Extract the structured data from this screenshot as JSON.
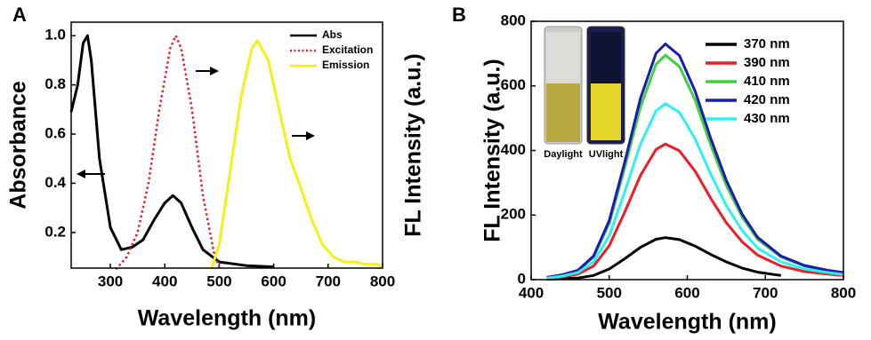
{
  "chart_data": [
    {
      "type": "line",
      "panel_label": "A",
      "xlabel": "Wavelength (nm)",
      "ylabel": "Absorbance",
      "y2label": "FL Intensity (a.u.)",
      "xlim": [
        228,
        800
      ],
      "xticks": [
        300,
        400,
        500,
        600,
        700,
        800
      ],
      "ylim": [
        0.055,
        1.055
      ],
      "yticks": [
        0.2,
        0.4,
        0.6,
        0.8,
        {
          "value": 1.0,
          "label": "1.0"
        }
      ],
      "y2lim": [
        0.055,
        1.055
      ],
      "legend": "upper right",
      "series": [
        {
          "name": "Abs",
          "color": "#000000",
          "style": "solid",
          "x": [
            228,
            240,
            250,
            258,
            265,
            280,
            300,
            320,
            340,
            360,
            380,
            400,
            415,
            430,
            450,
            470,
            500,
            550,
            600
          ],
          "values": [
            0.69,
            0.8,
            0.97,
            1.0,
            0.9,
            0.5,
            0.22,
            0.13,
            0.14,
            0.17,
            0.25,
            0.32,
            0.35,
            0.32,
            0.22,
            0.13,
            0.08,
            0.065,
            0.06
          ]
        },
        {
          "name": "Excitation",
          "color": "#e8202a",
          "style": "dotted",
          "axis": "y2",
          "x": [
            310,
            330,
            350,
            370,
            390,
            410,
            420,
            430,
            450,
            470,
            490,
            500
          ],
          "values": [
            0.05,
            0.1,
            0.2,
            0.4,
            0.7,
            0.95,
            1.0,
            0.95,
            0.7,
            0.35,
            0.12,
            0.06
          ]
        },
        {
          "name": "Emission",
          "color": "#f5ef1a",
          "style": "solid",
          "axis": "y2",
          "x": [
            485,
            500,
            520,
            540,
            560,
            570,
            590,
            610,
            630,
            650,
            670,
            690,
            710,
            730,
            750,
            770,
            790,
            800
          ],
          "values": [
            0.05,
            0.15,
            0.45,
            0.75,
            0.95,
            0.98,
            0.9,
            0.7,
            0.5,
            0.38,
            0.25,
            0.15,
            0.1,
            0.08,
            0.08,
            0.07,
            0.07,
            0.06
          ]
        }
      ]
    },
    {
      "type": "line",
      "panel_label": "B",
      "xlabel": "Wavelength (nm)",
      "ylabel": "FL Intensity (a.u.)",
      "xlim": [
        400,
        800
      ],
      "xticks": [
        400,
        500,
        600,
        700,
        800
      ],
      "ylim": [
        0,
        800
      ],
      "yticks": [
        0,
        200,
        400,
        600,
        800
      ],
      "legend": "upper right",
      "inset_labels": [
        "Daylight",
        "UVlight"
      ],
      "x": [
        420,
        440,
        460,
        480,
        500,
        520,
        540,
        560,
        572,
        590,
        610,
        630,
        650,
        670,
        690,
        720,
        750,
        780,
        800
      ],
      "series": [
        {
          "name": "370 nm",
          "color": "#000000",
          "values": [
            1,
            3,
            5,
            13,
            33,
            65,
            100,
            125,
            130,
            124,
            104,
            78,
            55,
            36,
            23,
            13,
            null,
            null,
            null
          ]
        },
        {
          "name": "390 nm",
          "color": "#ee1c24",
          "values": [
            4,
            8,
            17,
            42,
            105,
            210,
            323,
            403,
            420,
            399,
            336,
            252,
            176,
            118,
            76,
            42,
            25,
            17,
            13
          ]
        },
        {
          "name": "410 nm",
          "color": "#3ed03e",
          "values": [
            7,
            14,
            28,
            70,
            174,
            348,
            535,
            667,
            695,
            660,
            556,
            417,
            292,
            195,
            125,
            70,
            42,
            28,
            21
          ]
        },
        {
          "name": "420 nm",
          "color": "#1a1ab4",
          "values": [
            7,
            15,
            29,
            73,
            183,
            365,
            562,
            701,
            730,
            694,
            584,
            438,
            307,
            204,
            131,
            73,
            44,
            29,
            22
          ]
        },
        {
          "name": "430 nm",
          "color": "#2ff0f0",
          "values": [
            5,
            11,
            22,
            55,
            136,
            273,
            420,
            523,
            545,
            518,
            436,
            327,
            229,
            153,
            98,
            55,
            33,
            22,
            16
          ]
        }
      ]
    }
  ]
}
